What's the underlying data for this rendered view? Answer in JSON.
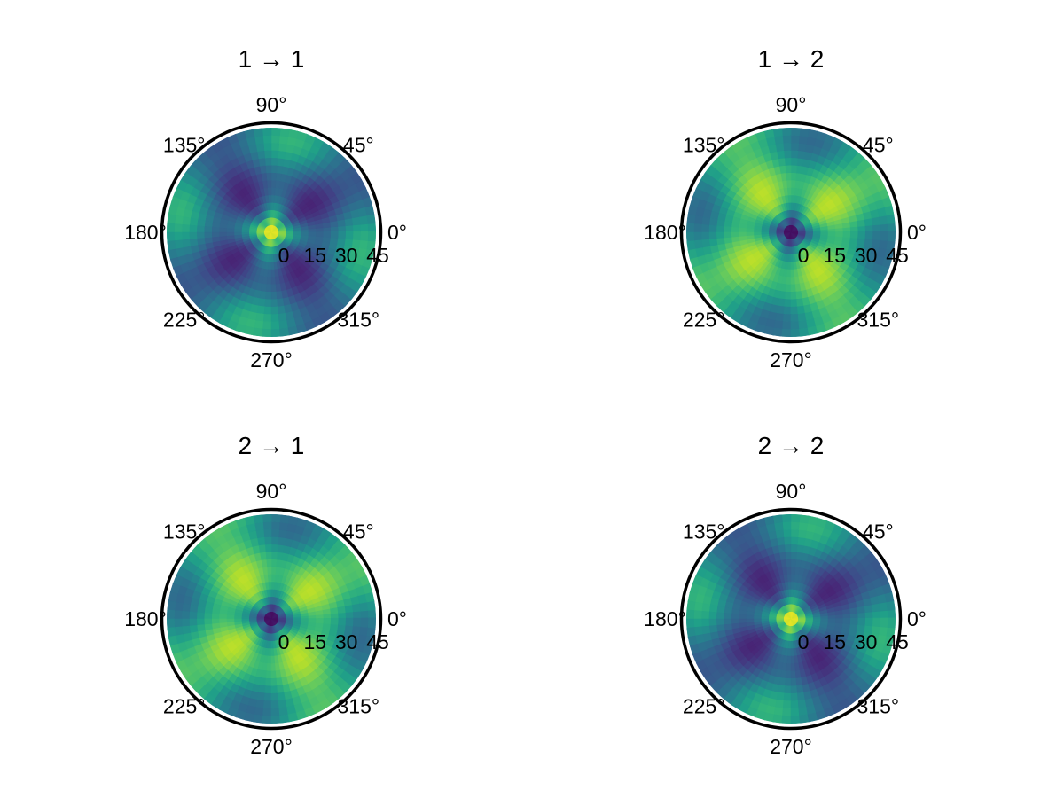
{
  "chart_data": [
    {
      "type": "heatmap",
      "projection": "polar",
      "title": "1 → 1",
      "angle_tick_labels": [
        "0°",
        "45°",
        "90°",
        "135°",
        "180°",
        "225°",
        "270°",
        "315°"
      ],
      "radial_tick_labels": [
        "0",
        "15",
        "30",
        "45"
      ],
      "rlim": [
        0,
        45
      ],
      "colormap": "viridis",
      "pattern": "high",
      "grid": false,
      "legend": "none"
    },
    {
      "type": "heatmap",
      "projection": "polar",
      "title": "1 → 2",
      "angle_tick_labels": [
        "0°",
        "45°",
        "90°",
        "135°",
        "180°",
        "225°",
        "270°",
        "315°"
      ],
      "radial_tick_labels": [
        "0",
        "15",
        "30",
        "45"
      ],
      "rlim": [
        0,
        45
      ],
      "colormap": "viridis",
      "pattern": "low",
      "grid": false,
      "legend": "none"
    },
    {
      "type": "heatmap",
      "projection": "polar",
      "title": "2 → 1",
      "angle_tick_labels": [
        "0°",
        "45°",
        "90°",
        "135°",
        "180°",
        "225°",
        "270°",
        "315°"
      ],
      "radial_tick_labels": [
        "0",
        "15",
        "30",
        "45"
      ],
      "rlim": [
        0,
        45
      ],
      "colormap": "viridis",
      "pattern": "low",
      "grid": false,
      "legend": "none"
    },
    {
      "type": "heatmap",
      "projection": "polar",
      "title": "2 → 2",
      "angle_tick_labels": [
        "0°",
        "45°",
        "90°",
        "135°",
        "180°",
        "225°",
        "270°",
        "315°"
      ],
      "radial_tick_labels": [
        "0",
        "15",
        "30",
        "45"
      ],
      "rlim": [
        0,
        45
      ],
      "colormap": "viridis",
      "pattern": "high",
      "grid": false,
      "legend": "none"
    }
  ]
}
